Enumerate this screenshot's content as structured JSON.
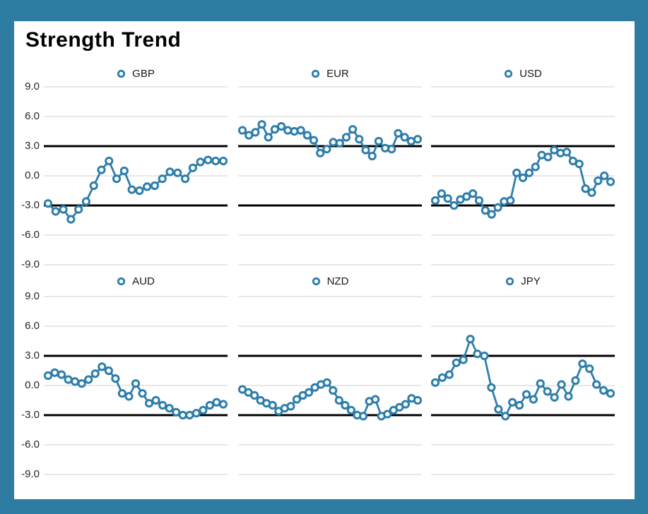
{
  "title": "Strength Trend",
  "colors": {
    "frame": "#2E7CA2",
    "series": "#2E7EAB",
    "ref_line": "#000000",
    "gridline": "#DBDBDB",
    "text": "#262626",
    "card_bg": "#FFFFFF"
  },
  "axis": {
    "ticks": [
      "9.0",
      "6.0",
      "3.0",
      "0.0",
      "-3.0",
      "-6.0",
      "-9.0"
    ],
    "tick_values": [
      9,
      6,
      3,
      0,
      -3,
      -6,
      -9
    ],
    "ymin": -9,
    "ymax": 9,
    "ref_lines": [
      3,
      -3
    ],
    "minor_gridlines": [
      9,
      6,
      0,
      -6,
      -9
    ]
  },
  "legend_marker": "ring-icon",
  "chart_data": [
    {
      "type": "line",
      "title": "GBP",
      "row": 0,
      "col": 0,
      "ylim": [
        -9,
        9
      ],
      "ref_lines": [
        3,
        -3
      ],
      "values": [
        -2.8,
        -3.6,
        -3.4,
        -4.4,
        -3.4,
        -2.6,
        -1.0,
        0.6,
        1.5,
        -0.3,
        0.5,
        -1.4,
        -1.5,
        -1.1,
        -1.0,
        -0.3,
        0.4,
        0.3,
        -0.3,
        0.8,
        1.4,
        1.6,
        1.5,
        1.5
      ]
    },
    {
      "type": "line",
      "title": "EUR",
      "row": 0,
      "col": 1,
      "ylim": [
        -9,
        9
      ],
      "ref_lines": [
        3,
        -3
      ],
      "values": [
        4.6,
        4.1,
        4.4,
        5.2,
        3.9,
        4.7,
        5.0,
        4.6,
        4.5,
        4.6,
        4.1,
        3.6,
        2.3,
        2.7,
        3.4,
        3.3,
        3.9,
        4.7,
        3.7,
        2.6,
        2.0,
        3.5,
        2.8,
        2.7,
        4.3,
        3.9,
        3.5,
        3.7
      ]
    },
    {
      "type": "line",
      "title": "USD",
      "row": 0,
      "col": 2,
      "ylim": [
        -9,
        9
      ],
      "ref_lines": [
        3,
        -3
      ],
      "values": [
        -2.5,
        -1.8,
        -2.3,
        -3.0,
        -2.4,
        -2.1,
        -1.8,
        -2.5,
        -3.5,
        -3.9,
        -3.2,
        -2.6,
        -2.5,
        0.3,
        -0.2,
        0.3,
        0.9,
        2.1,
        1.9,
        2.6,
        2.3,
        2.4,
        1.5,
        1.2,
        -1.3,
        -1.7,
        -0.5,
        0.0,
        -0.6
      ]
    },
    {
      "type": "line",
      "title": "AUD",
      "row": 1,
      "col": 0,
      "ylim": [
        -9,
        9
      ],
      "ref_lines": [
        3,
        -3
      ],
      "values": [
        1.0,
        1.3,
        1.1,
        0.6,
        0.4,
        0.2,
        0.6,
        1.2,
        1.9,
        1.5,
        0.7,
        -0.8,
        -1.1,
        0.2,
        -0.8,
        -1.8,
        -1.5,
        -2.0,
        -2.3,
        -2.7,
        -3.0,
        -3.0,
        -2.8,
        -2.5,
        -2.0,
        -1.7,
        -1.9
      ]
    },
    {
      "type": "line",
      "title": "NZD",
      "row": 1,
      "col": 1,
      "ylim": [
        -9,
        9
      ],
      "ref_lines": [
        3,
        -3
      ],
      "values": [
        -0.4,
        -0.7,
        -1.0,
        -1.5,
        -1.8,
        -2.0,
        -2.6,
        -2.3,
        -2.1,
        -1.4,
        -1.0,
        -0.7,
        -0.2,
        0.1,
        0.3,
        -0.5,
        -1.5,
        -2.0,
        -2.5,
        -3.0,
        -3.1,
        -1.6,
        -1.4,
        -3.1,
        -2.9,
        -2.5,
        -2.2,
        -1.9,
        -1.3,
        -1.5
      ]
    },
    {
      "type": "line",
      "title": "JPY",
      "row": 1,
      "col": 2,
      "ylim": [
        -9,
        9
      ],
      "ref_lines": [
        3,
        -3
      ],
      "values": [
        0.3,
        0.8,
        1.1,
        2.3,
        2.6,
        4.7,
        3.2,
        3.0,
        -0.2,
        -2.4,
        -3.1,
        -1.7,
        -2.0,
        -0.9,
        -1.4,
        0.2,
        -0.6,
        -1.2,
        0.1,
        -1.1,
        0.5,
        2.2,
        1.7,
        0.1,
        -0.5,
        -0.8
      ]
    }
  ]
}
